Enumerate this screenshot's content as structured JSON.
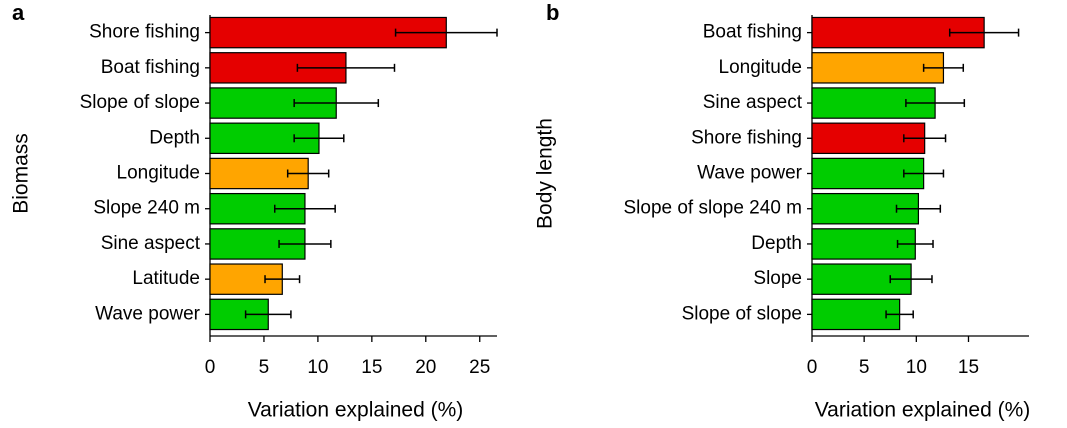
{
  "chart_data": [
    {
      "type": "bar",
      "orientation": "horizontal",
      "panel_label": "a",
      "ylabel": "Biomass",
      "xlabel": "Variation explained (%)",
      "categories": [
        "Shore fishing",
        "Boat fishing",
        "Slope of slope",
        "Depth",
        "Longitude",
        "Slope 240 m",
        "Sine aspect",
        "Latitude",
        "Wave power"
      ],
      "values": [
        21.9,
        12.6,
        11.7,
        10.1,
        9.1,
        8.8,
        8.8,
        6.7,
        5.4
      ],
      "errors": [
        4.7,
        4.5,
        3.9,
        2.3,
        1.9,
        2.8,
        2.4,
        1.6,
        2.1
      ],
      "colors": [
        "#e50000",
        "#e50000",
        "#00cc00",
        "#00cc00",
        "#ffa500",
        "#00cc00",
        "#00cc00",
        "#ffa500",
        "#00cc00"
      ],
      "xlim": [
        0,
        26.6
      ],
      "xticks": [
        0,
        5,
        10,
        15,
        20,
        25
      ]
    },
    {
      "type": "bar",
      "orientation": "horizontal",
      "panel_label": "b",
      "ylabel": "Body length",
      "xlabel": "Variation explained (%)",
      "categories": [
        "Boat fishing",
        "Longitude",
        "Sine aspect",
        "Shore fishing",
        "Wave power",
        "Slope of slope 240 m",
        "Depth",
        "Slope",
        "Slope of slope"
      ],
      "values": [
        16.5,
        12.6,
        11.8,
        10.8,
        10.7,
        10.2,
        9.9,
        9.5,
        8.4
      ],
      "errors": [
        3.3,
        1.9,
        2.8,
        2.0,
        1.9,
        2.1,
        1.7,
        2.0,
        1.3
      ],
      "colors": [
        "#e50000",
        "#ffa500",
        "#00cc00",
        "#e50000",
        "#00cc00",
        "#00cc00",
        "#00cc00",
        "#00cc00",
        "#00cc00"
      ],
      "xlim": [
        0,
        20.8
      ],
      "xticks": [
        0,
        5,
        10,
        15
      ]
    }
  ]
}
